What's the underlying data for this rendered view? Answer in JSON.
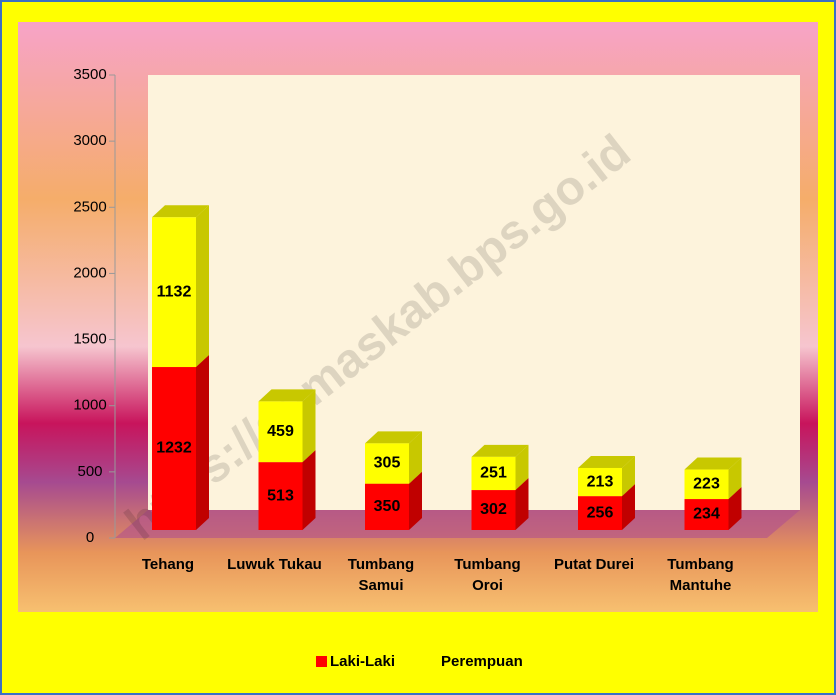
{
  "chart_data": {
    "type": "bar3d-stacked",
    "categories": [
      "Tehang",
      "Luwuk Tukau",
      "Tumbang Samui",
      "Tumbang Oroi",
      "Putat Durei",
      "Tumbang Mantuhe"
    ],
    "series": [
      {
        "name": "Laki-Laki",
        "color": "#ff0000",
        "side": "#c00000",
        "values": [
          1232,
          513,
          350,
          302,
          256,
          234
        ]
      },
      {
        "name": "Perempuan",
        "color": "#ffff00",
        "side": "#c8c800",
        "values": [
          1132,
          459,
          305,
          251,
          213,
          223
        ]
      }
    ],
    "ylim": [
      0,
      3500
    ],
    "yticks": [
      0,
      500,
      1000,
      1500,
      2000,
      2500,
      3000,
      3500
    ],
    "watermark": "https://gumaskab.bps.go.id"
  }
}
